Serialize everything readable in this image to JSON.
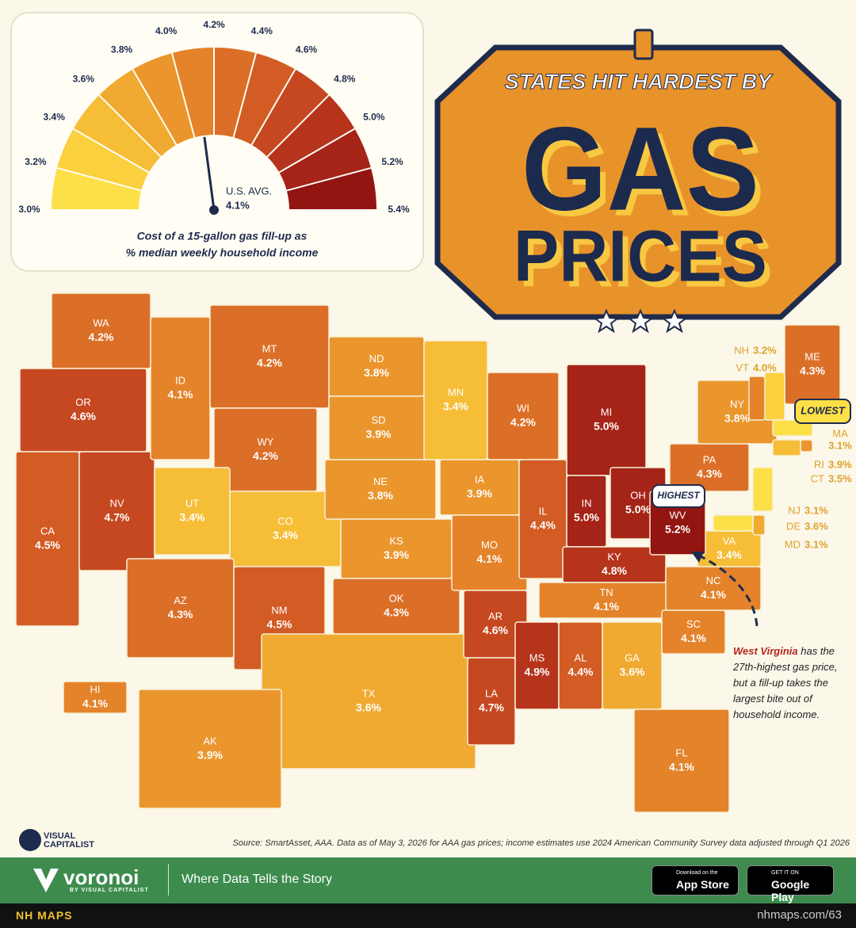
{
  "gauge": {
    "ticks": [
      {
        "value": 3.0,
        "label": "3.0%"
      },
      {
        "value": 3.2,
        "label": "3.2%"
      },
      {
        "value": 3.4,
        "label": "3.4%"
      },
      {
        "value": 3.6,
        "label": "3.6%"
      },
      {
        "value": 3.8,
        "label": "3.8%"
      },
      {
        "value": 4.0,
        "label": "4.0%"
      },
      {
        "value": 4.2,
        "label": "4.2%"
      },
      {
        "value": 4.4,
        "label": "4.4%"
      },
      {
        "value": 4.6,
        "label": "4.6%"
      },
      {
        "value": 4.8,
        "label": "4.8%"
      },
      {
        "value": 5.0,
        "label": "5.0%"
      },
      {
        "value": 5.2,
        "label": "5.2%"
      },
      {
        "value": 5.4,
        "label": "5.4%"
      }
    ],
    "colors": [
      "#fde047",
      "#fbd03e",
      "#f6bd37",
      "#f0aa31",
      "#ea962d",
      "#e4832a",
      "#dc6f27",
      "#d25c24",
      "#c64821",
      "#b6341c",
      "#a52317",
      "#921512"
    ],
    "us_avg_label": "U.S. AVG.",
    "us_avg": {
      "value": 4.1,
      "label": "4.1%"
    },
    "caption_line1": "Cost of a 15-gallon gas fill-up as",
    "caption_line2": "% median weekly household income"
  },
  "title": {
    "kicker": "STATES HIT HARDEST BY",
    "line1": "GAS",
    "line2": "PRICES"
  },
  "states": [
    {
      "abbr": "WA",
      "value": 4.2,
      "label": "4.2%"
    },
    {
      "abbr": "OR",
      "value": 4.6,
      "label": "4.6%"
    },
    {
      "abbr": "CA",
      "value": 4.5,
      "label": "4.5%"
    },
    {
      "abbr": "NV",
      "value": 4.7,
      "label": "4.7%"
    },
    {
      "abbr": "ID",
      "value": 4.1,
      "label": "4.1%"
    },
    {
      "abbr": "MT",
      "value": 4.2,
      "label": "4.2%"
    },
    {
      "abbr": "WY",
      "value": 4.2,
      "label": "4.2%"
    },
    {
      "abbr": "UT",
      "value": 3.4,
      "label": "3.4%"
    },
    {
      "abbr": "CO",
      "value": 3.4,
      "label": "3.4%"
    },
    {
      "abbr": "AZ",
      "value": 4.3,
      "label": "4.3%"
    },
    {
      "abbr": "NM",
      "value": 4.5,
      "label": "4.5%"
    },
    {
      "abbr": "ND",
      "value": 3.8,
      "label": "3.8%"
    },
    {
      "abbr": "SD",
      "value": 3.9,
      "label": "3.9%"
    },
    {
      "abbr": "NE",
      "value": 3.8,
      "label": "3.8%"
    },
    {
      "abbr": "KS",
      "value": 3.9,
      "label": "3.9%"
    },
    {
      "abbr": "OK",
      "value": 4.3,
      "label": "4.3%"
    },
    {
      "abbr": "TX",
      "value": 3.6,
      "label": "3.6%"
    },
    {
      "abbr": "MN",
      "value": 3.4,
      "label": "3.4%"
    },
    {
      "abbr": "IA",
      "value": 3.9,
      "label": "3.9%"
    },
    {
      "abbr": "MO",
      "value": 4.1,
      "label": "4.1%"
    },
    {
      "abbr": "AR",
      "value": 4.6,
      "label": "4.6%"
    },
    {
      "abbr": "LA",
      "value": 4.7,
      "label": "4.7%"
    },
    {
      "abbr": "WI",
      "value": 4.2,
      "label": "4.2%"
    },
    {
      "abbr": "IL",
      "value": 4.4,
      "label": "4.4%"
    },
    {
      "abbr": "MI",
      "value": 5.0,
      "label": "5.0%"
    },
    {
      "abbr": "IN",
      "value": 5.0,
      "label": "5.0%"
    },
    {
      "abbr": "OH",
      "value": 5.0,
      "label": "5.0%"
    },
    {
      "abbr": "KY",
      "value": 4.8,
      "label": "4.8%"
    },
    {
      "abbr": "TN",
      "value": 4.1,
      "label": "4.1%"
    },
    {
      "abbr": "MS",
      "value": 4.9,
      "label": "4.9%"
    },
    {
      "abbr": "AL",
      "value": 4.4,
      "label": "4.4%"
    },
    {
      "abbr": "GA",
      "value": 3.6,
      "label": "3.6%"
    },
    {
      "abbr": "FL",
      "value": 4.1,
      "label": "4.1%"
    },
    {
      "abbr": "SC",
      "value": 4.1,
      "label": "4.1%"
    },
    {
      "abbr": "NC",
      "value": 4.1,
      "label": "4.1%"
    },
    {
      "abbr": "VA",
      "value": 3.4,
      "label": "3.4%"
    },
    {
      "abbr": "WV",
      "value": 5.2,
      "label": "5.2%"
    },
    {
      "abbr": "PA",
      "value": 4.3,
      "label": "4.3%"
    },
    {
      "abbr": "NY",
      "value": 3.8,
      "label": "3.8%"
    },
    {
      "abbr": "ME",
      "value": 4.3,
      "label": "4.3%"
    },
    {
      "abbr": "NH",
      "value": 3.2,
      "label": "3.2%"
    },
    {
      "abbr": "VT",
      "value": 4.0,
      "label": "4.0%"
    },
    {
      "abbr": "MA",
      "value": 3.1,
      "label": "3.1%"
    },
    {
      "abbr": "RI",
      "value": 3.9,
      "label": "3.9%"
    },
    {
      "abbr": "CT",
      "value": 3.5,
      "label": "3.5%"
    },
    {
      "abbr": "NJ",
      "value": 3.1,
      "label": "3.1%"
    },
    {
      "abbr": "DE",
      "value": 3.6,
      "label": "3.6%"
    },
    {
      "abbr": "MD",
      "value": 3.1,
      "label": "3.1%"
    },
    {
      "abbr": "AK",
      "value": 3.9,
      "label": "3.9%"
    },
    {
      "abbr": "HI",
      "value": 4.1,
      "label": "4.1%"
    }
  ],
  "callouts": {
    "lowest": "LOWEST",
    "highest": "HIGHEST"
  },
  "annotation": {
    "bold": "West Virginia",
    "text": "has the 27th-highest gas price, but a fill-up takes the largest bite out of household income."
  },
  "source": "Source: SmartAsset, AAA. Data as of May 3, 2026 for AAA gas prices; income estimates use 2024 American Community Survey data adjusted through Q1 2026",
  "brand": "VISUAL CAPITALIST",
  "footer": {
    "logo": "voronoi",
    "logo_sub": "BY VISUAL CAPITALIST",
    "tagline": "Where Data Tells the Story",
    "appstore_small": "Download on the",
    "appstore": "App Store",
    "googleplay_small": "GET IT ON",
    "googleplay": "Google Play",
    "maps": "NH MAPS",
    "url": "nhmaps.com/63"
  }
}
